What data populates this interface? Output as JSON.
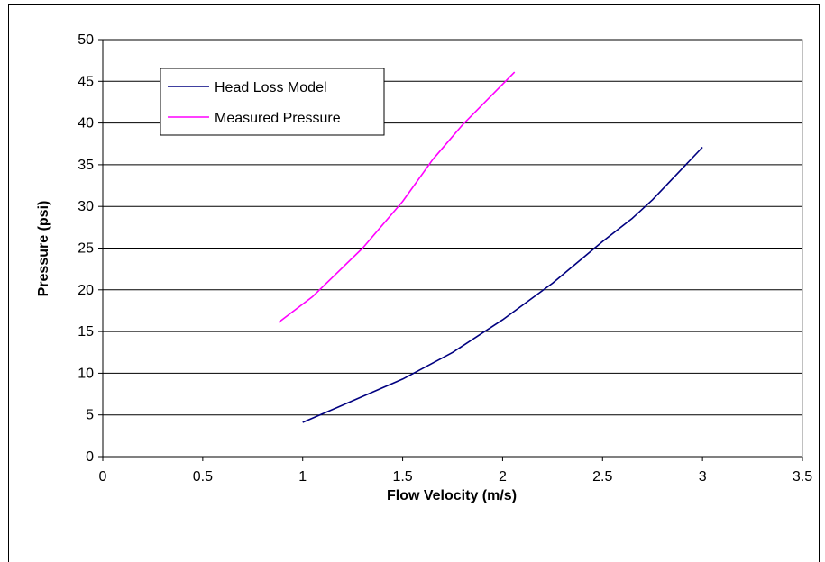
{
  "chart_data": {
    "type": "line",
    "title": "",
    "xlabel": "Flow Velocity (m/s)",
    "ylabel": "Pressure (psi)",
    "xlim": [
      0,
      3.5
    ],
    "ylim": [
      0,
      50
    ],
    "xticks": [
      0,
      0.5,
      1,
      1.5,
      2,
      2.5,
      3,
      3.5
    ],
    "yticks": [
      0,
      5,
      10,
      15,
      20,
      25,
      30,
      35,
      40,
      45,
      50
    ],
    "xtick_labels": [
      "0",
      "0.5",
      "1",
      "1.5",
      "2",
      "2.5",
      "3",
      "3.5"
    ],
    "ytick_labels": [
      "0",
      "5",
      "10",
      "15",
      "20",
      "25",
      "30",
      "35",
      "40",
      "45",
      "50"
    ],
    "grid": "horizontal major",
    "legend_position": "top-left",
    "series": [
      {
        "name": "Head Loss Model",
        "color": "#000080",
        "x": [
          1.0,
          1.25,
          1.5,
          1.75,
          2.0,
          2.25,
          2.5,
          2.65,
          2.75,
          3.0
        ],
        "y": [
          4.1,
          6.7,
          9.3,
          12.5,
          16.4,
          20.8,
          25.8,
          28.6,
          30.8,
          37.1
        ]
      },
      {
        "name": "Measured Pressure",
        "color": "#FF00FF",
        "x": [
          0.88,
          1.05,
          1.3,
          1.5,
          1.65,
          1.8,
          2.06
        ],
        "y": [
          16.1,
          19.2,
          25.0,
          30.6,
          35.6,
          39.8,
          46.1
        ]
      }
    ]
  }
}
